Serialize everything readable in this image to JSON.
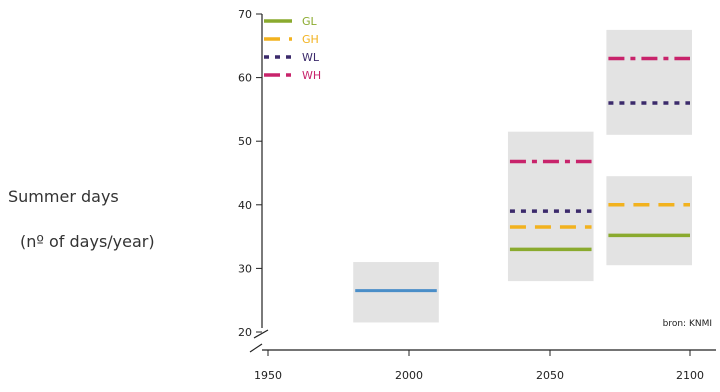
{
  "chart_data": {
    "type": "range-bar",
    "ylabel_line1": "Summer days",
    "ylabel_line2": "(nº of days/year)",
    "source": "bron: KNMI",
    "ylim": [
      20,
      70
    ],
    "xlim": [
      1940,
      2110
    ],
    "y_ticks": [
      "20",
      "30",
      "40",
      "50",
      "60",
      "70"
    ],
    "x_ticks": [
      "1950",
      "2000",
      "2050",
      "2100"
    ],
    "colors": {
      "GL": "#8aaa2e",
      "GH": "#f2b21e",
      "WL": "#3b2a6b",
      "WH": "#c8236b",
      "observed": "#4a8ec8",
      "range": "#e3e3e3"
    },
    "legend": [
      {
        "name": "GL",
        "style": "solid"
      },
      {
        "name": "GH",
        "style": "dash"
      },
      {
        "name": "WL",
        "style": "dot"
      },
      {
        "name": "WH",
        "style": "dashdot"
      }
    ],
    "observed": {
      "x0": 1981,
      "x1": 2010,
      "value": 26.5,
      "range": [
        21.5,
        31
      ]
    },
    "periods": [
      {
        "x0": 2036,
        "x1": 2065,
        "range": [
          28,
          51.5
        ],
        "values": {
          "GL": 33,
          "GH": 36.5,
          "WL": 39,
          "WH": 46.8
        }
      },
      {
        "x0": 2071,
        "x1": 2100,
        "range_low": [
          30.5,
          44.5
        ],
        "range_high": [
          51,
          67.5
        ],
        "values": {
          "GL": 35.2,
          "GH": 40,
          "WL": 56,
          "WH": 63
        }
      }
    ]
  }
}
